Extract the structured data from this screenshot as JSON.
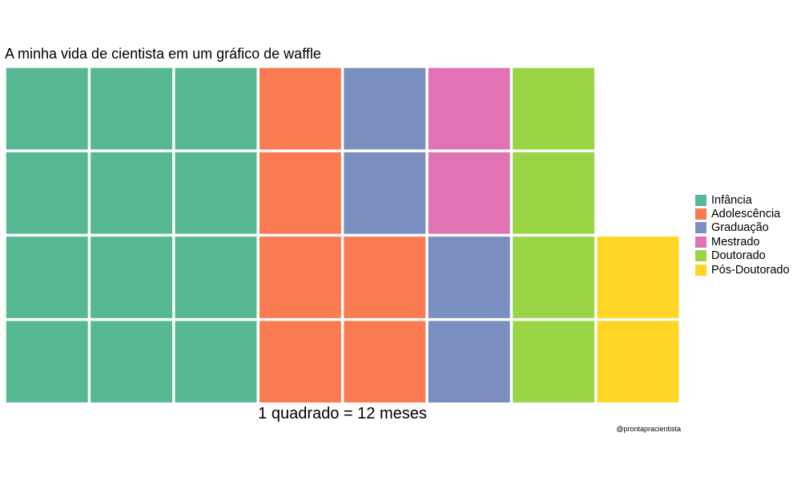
{
  "chart_data": {
    "type": "waffle",
    "title": "A minha vida de cientista em um gráfico de waffle",
    "xlabel": "1 quadrado = 12 meses",
    "caption": "@prontapracientista",
    "grid": {
      "rows": 4,
      "columns": 8
    },
    "fill_order": "column-wise, bottom to top",
    "legend_position": "right",
    "categories": [
      "Infância",
      "Adolescência",
      "Graduação",
      "Mestrado",
      "Doutorado",
      "Pós-Doutorado"
    ],
    "values": [
      12,
      6,
      4,
      2,
      4,
      2
    ],
    "colors": [
      "#57b993",
      "#fa7b52",
      "#7b8ec0",
      "#e173b5",
      "#9ad545",
      "#ffd526"
    ]
  }
}
